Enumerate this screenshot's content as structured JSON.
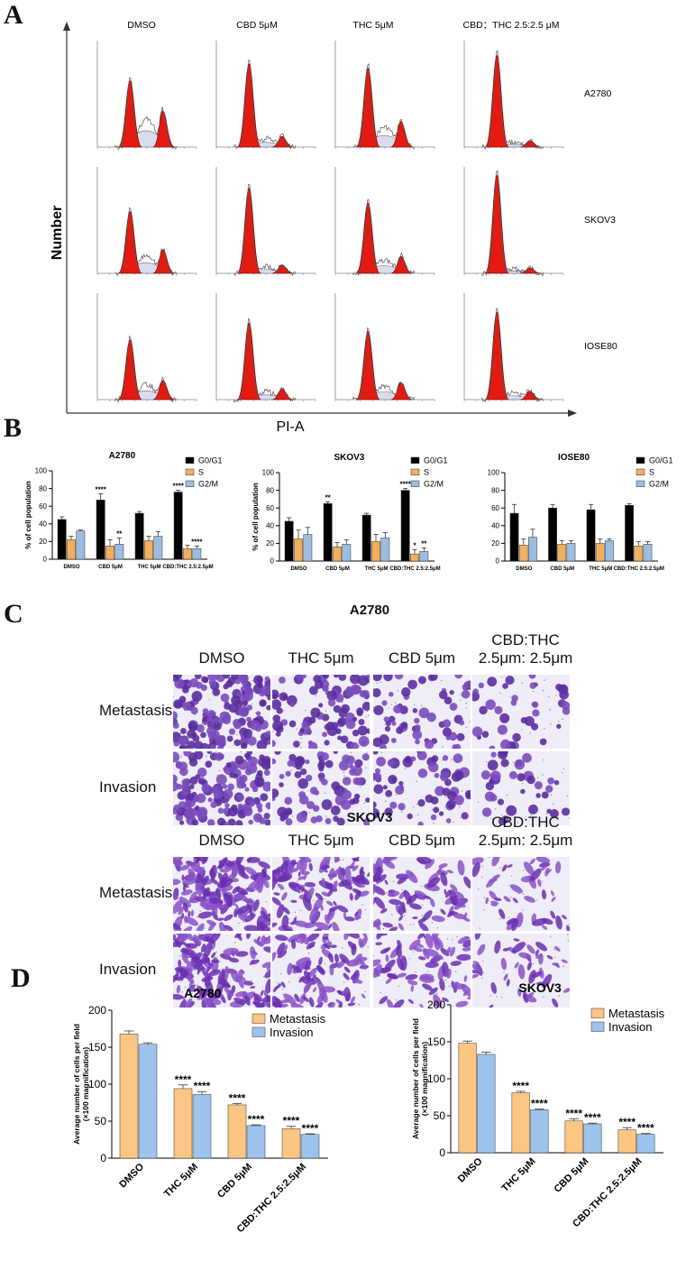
{
  "panels": {
    "a": "A",
    "b": "B",
    "c": "C",
    "d": "D"
  },
  "panel_a": {
    "columns": [
      "DMSO",
      "CBD 5μM",
      "THC 5μM",
      "CBD：THC 2.5:2.5 μM"
    ],
    "rows": [
      "A2780",
      "SKOV3",
      "IOSE80"
    ],
    "x_axis_label": "PI-A",
    "y_axis_label": "Number",
    "peak_heights": [
      [
        0.62,
        0.78,
        0.74,
        0.86
      ],
      [
        0.58,
        0.8,
        0.66,
        0.92
      ],
      [
        0.56,
        0.72,
        0.64,
        0.82
      ]
    ],
    "g2_heights": [
      [
        0.34,
        0.1,
        0.24,
        0.06
      ],
      [
        0.22,
        0.08,
        0.16,
        0.05
      ],
      [
        0.18,
        0.1,
        0.16,
        0.08
      ]
    ]
  },
  "panel_c": {
    "sections": [
      {
        "title": "A2780",
        "columns": [
          "DMSO",
          "THC 5μm",
          "CBD 5μm",
          "CBD:THC\n2.5μm: 2.5μm"
        ],
        "rows": [
          "Metastasis",
          "Invasion"
        ],
        "density": [
          [
            1.0,
            0.5,
            0.3,
            0.15
          ],
          [
            0.9,
            0.4,
            0.3,
            0.12
          ]
        ]
      },
      {
        "title": "SKOV3",
        "columns": [
          "DMSO",
          "THC 5μm",
          "CBD 5μm",
          "CBD:THC\n2.5μm: 2.5μm"
        ],
        "rows": [
          "Metastasis",
          "Invasion"
        ],
        "density": [
          [
            1.0,
            0.7,
            0.45,
            0.2
          ],
          [
            0.9,
            0.55,
            0.4,
            0.18
          ]
        ]
      }
    ]
  },
  "chart_data": [
    {
      "type": "bar",
      "title": "A2780",
      "ylabel": "% of cell population",
      "categories": [
        "DMSO",
        "CBD 5μM",
        "THC 5μM",
        "CBD:THC 2.5:2.5μM"
      ],
      "ylim": [
        0,
        100
      ],
      "yticks": [
        0,
        20,
        40,
        60,
        80,
        100
      ],
      "series": [
        {
          "name": "G0/G1",
          "color": "#000000",
          "values": [
            45,
            67,
            52,
            76
          ],
          "errors": [
            3,
            7,
            2,
            2
          ],
          "sig": [
            "",
            "****",
            "",
            "****"
          ]
        },
        {
          "name": "S",
          "color": "#f0b060",
          "values": [
            22,
            15,
            21,
            12
          ],
          "errors": [
            4,
            7,
            5,
            4
          ],
          "sig": [
            "",
            "",
            "",
            ""
          ]
        },
        {
          "name": "G2/M",
          "color": "#9dbde0",
          "values": [
            32,
            17,
            26,
            12
          ],
          "errors": [
            1,
            7,
            5,
            3
          ],
          "sig": [
            "",
            "**",
            "",
            "****"
          ]
        }
      ]
    },
    {
      "type": "bar",
      "title": "SKOV3",
      "ylabel": "% of cell population",
      "categories": [
        "DMSO",
        "CBD 5μM",
        "THC 5μM",
        "CBD:THC 2.5:2.5μM"
      ],
      "ylim": [
        0,
        100
      ],
      "yticks": [
        0,
        20,
        40,
        60,
        80,
        100
      ],
      "series": [
        {
          "name": "G0/G1",
          "color": "#000000",
          "values": [
            45,
            65,
            52,
            80
          ],
          "errors": [
            4,
            2,
            2,
            2
          ],
          "sig": [
            "",
            "**",
            "",
            "****"
          ]
        },
        {
          "name": "S",
          "color": "#f0b060",
          "values": [
            25,
            16,
            22,
            8
          ],
          "errors": [
            10,
            5,
            8,
            5
          ],
          "sig": [
            "",
            "",
            "",
            "*"
          ]
        },
        {
          "name": "G2/M",
          "color": "#9dbde0",
          "values": [
            30,
            19,
            26,
            11
          ],
          "errors": [
            8,
            5,
            6,
            4
          ],
          "sig": [
            "",
            "",
            "",
            "**"
          ]
        }
      ]
    },
    {
      "type": "bar",
      "title": "IOSE80",
      "ylabel": "",
      "categories": [
        "DMSO",
        "CBD 5μM",
        "THC 5μM",
        "CBD:THC 2.5:2.5μM"
      ],
      "ylim": [
        0,
        100
      ],
      "yticks": [
        0,
        20,
        40,
        60,
        80,
        100
      ],
      "series": [
        {
          "name": "G0/G1",
          "color": "#000000",
          "values": [
            54,
            60,
            58,
            63
          ],
          "errors": [
            10,
            4,
            6,
            2
          ],
          "sig": [
            "",
            "",
            "",
            ""
          ]
        },
        {
          "name": "S",
          "color": "#f0b060",
          "values": [
            18,
            19,
            20,
            17
          ],
          "errors": [
            7,
            4,
            5,
            5
          ],
          "sig": [
            "",
            "",
            "",
            ""
          ]
        },
        {
          "name": "G2/M",
          "color": "#9dbde0",
          "values": [
            27,
            20,
            23,
            19
          ],
          "errors": [
            9,
            3,
            2,
            3
          ],
          "sig": [
            "",
            "",
            "",
            ""
          ]
        }
      ]
    },
    {
      "type": "bar",
      "title": "A2780",
      "ylabel": "Average number of cells per field\n(×100 magnification)",
      "categories": [
        "DMSO",
        "THC 5μM",
        "CBD 5μM",
        "CBD:THC 2.5:2.5μM"
      ],
      "ylim": [
        0,
        200
      ],
      "yticks": [
        0,
        50,
        100,
        150,
        200
      ],
      "series": [
        {
          "name": "Metastasis",
          "color": "#fbc583",
          "values": [
            168,
            94,
            72,
            40
          ],
          "errors": [
            4,
            5,
            2,
            3
          ],
          "sig": [
            "",
            "****",
            "****",
            "****"
          ]
        },
        {
          "name": "Invasion",
          "color": "#9dc3ec",
          "values": [
            154,
            86,
            44,
            32
          ],
          "errors": [
            2,
            4,
            1,
            1
          ],
          "sig": [
            "",
            "****",
            "****",
            "****"
          ]
        }
      ]
    },
    {
      "type": "bar",
      "title": "SKOV3",
      "ylabel": "Average number of cells per field\n(×100 magnification)",
      "categories": [
        "DMSO",
        "THC 5μM",
        "CBD 5μM",
        "CBD:THC 2.5:2.5μM"
      ],
      "ylim": [
        0,
        200
      ],
      "yticks": [
        0,
        50,
        100,
        150,
        200
      ],
      "series": [
        {
          "name": "Metastasis",
          "color": "#fbc583",
          "values": [
            148,
            81,
            43,
            31
          ],
          "errors": [
            3,
            2,
            3,
            3
          ],
          "sig": [
            "",
            "****",
            "****",
            "****"
          ]
        },
        {
          "name": "Invasion",
          "color": "#9dc3ec",
          "values": [
            133,
            58,
            39,
            25
          ],
          "errors": [
            3,
            1,
            1,
            1
          ],
          "sig": [
            "",
            "****",
            "****",
            "****"
          ]
        }
      ]
    }
  ]
}
